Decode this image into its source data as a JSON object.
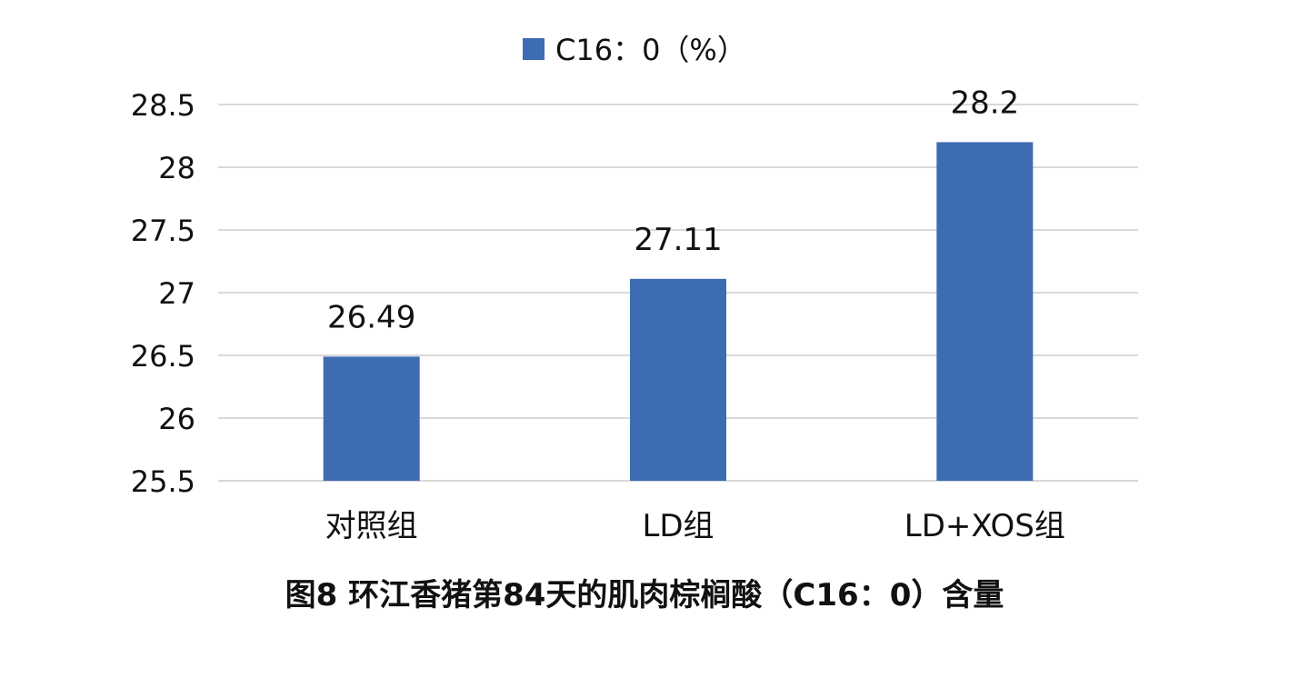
{
  "chart_data": {
    "type": "bar",
    "categories": [
      "对照组",
      "LD组",
      "LD+XOS组"
    ],
    "series": [
      {
        "name": "C16：0（%）",
        "values": [
          26.49,
          27.11,
          28.2
        ],
        "color": "#3E6CB2"
      }
    ],
    "data_labels": [
      "26.49",
      "27.11",
      "28.2"
    ],
    "ylim": [
      25.5,
      28.5
    ],
    "yticks": [
      25.5,
      26,
      26.5,
      27,
      27.5,
      28,
      28.5
    ],
    "ytick_labels": [
      "25.5",
      "26",
      "26.5",
      "27",
      "27.5",
      "28",
      "28.5"
    ],
    "grid": true,
    "legend_position": "top",
    "gridline_color": "#D9D9D9",
    "caption": "图8 环江香猪第84天的肌肉棕榈酸（C16：0）含量"
  }
}
